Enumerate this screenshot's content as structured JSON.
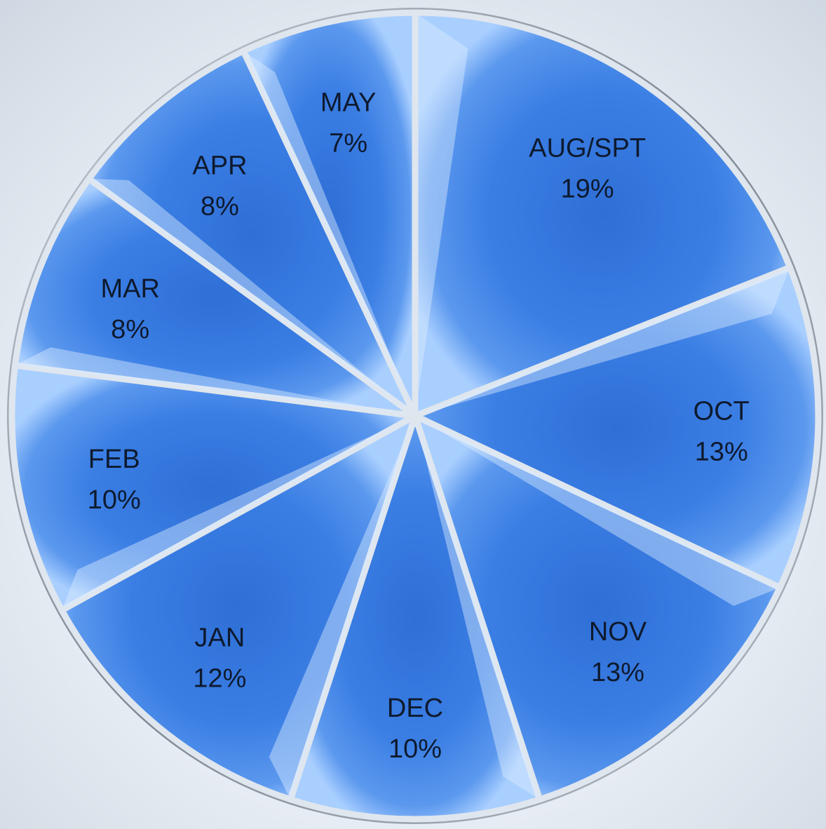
{
  "chart_data": {
    "type": "pie",
    "title": "",
    "slices": [
      {
        "label": "AUG/SPT",
        "value": 19,
        "value_label": "19%"
      },
      {
        "label": "OCT",
        "value": 13,
        "value_label": "13%"
      },
      {
        "label": "NOV",
        "value": 13,
        "value_label": "13%"
      },
      {
        "label": "DEC",
        "value": 10,
        "value_label": "10%"
      },
      {
        "label": "JAN",
        "value": 12,
        "value_label": "12%"
      },
      {
        "label": "FEB",
        "value": 10,
        "value_label": "10%"
      },
      {
        "label": "MAR",
        "value": 8,
        "value_label": "8%"
      },
      {
        "label": "APR",
        "value": 8,
        "value_label": "8%"
      },
      {
        "label": "MAY",
        "value": 7,
        "value_label": "7%"
      }
    ],
    "legend": "none",
    "colors": {
      "slice_base": "#3d7fe0",
      "slice_dark": "#2a62c9",
      "slice_light": "#9cc6ff",
      "separator": "#dfe6ee",
      "rim": "#8f98a3",
      "background": "#e9eef4"
    }
  }
}
